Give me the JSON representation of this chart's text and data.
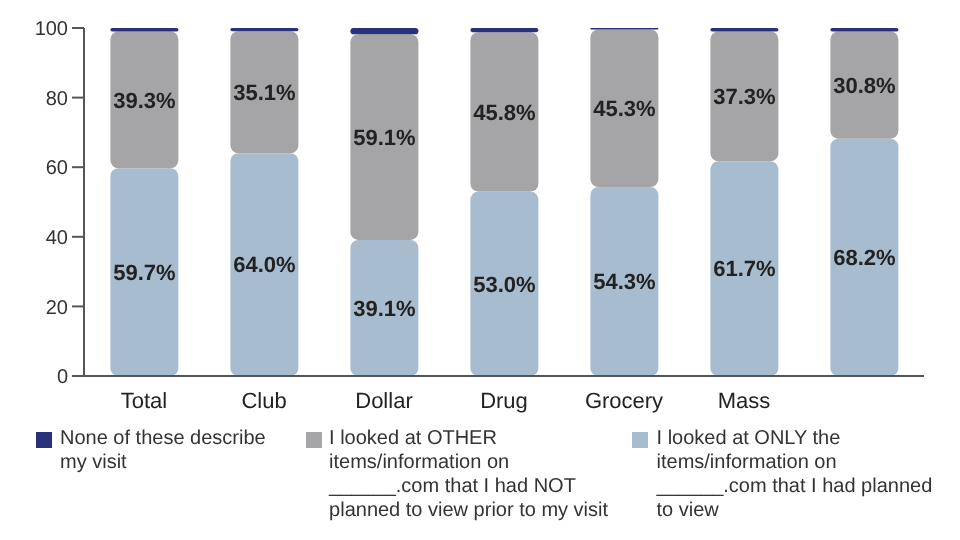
{
  "chart_data": {
    "type": "bar",
    "stacked": true,
    "categories": [
      "Total",
      "Club",
      "Dollar",
      "Drug",
      "Grocery",
      "Mass",
      null
    ],
    "series": [
      {
        "name": "I looked at ONLY the items/information on ______.com that I had planned to view",
        "color": "#a7bccf",
        "values": [
          59.7,
          64.0,
          39.1,
          53.0,
          54.3,
          61.7,
          68.2
        ],
        "value_labels": [
          "59.7%",
          "64.0%",
          "39.1%",
          "53.0%",
          "54.3%",
          "61.7%",
          "68.2%"
        ]
      },
      {
        "name": "I looked at OTHER items/information on ______.com that I had NOT planned to view prior to my visit",
        "color": "#a5a5a8",
        "values": [
          39.3,
          35.1,
          59.1,
          45.8,
          45.3,
          37.3,
          30.8
        ],
        "value_labels": [
          "39.3%",
          "35.1%",
          "59.1%",
          "45.8%",
          "45.3%",
          "37.3%",
          "30.8%"
        ]
      },
      {
        "name": "None of these describe my visit",
        "color": "#27327a",
        "values": [
          1.0,
          0.9,
          1.8,
          1.2,
          0.4,
          1.0,
          1.0
        ]
      }
    ],
    "ylim": [
      0,
      100
    ],
    "yticks": [
      0,
      20,
      40,
      60,
      80,
      100
    ],
    "grid": false,
    "legend": "bottom"
  }
}
